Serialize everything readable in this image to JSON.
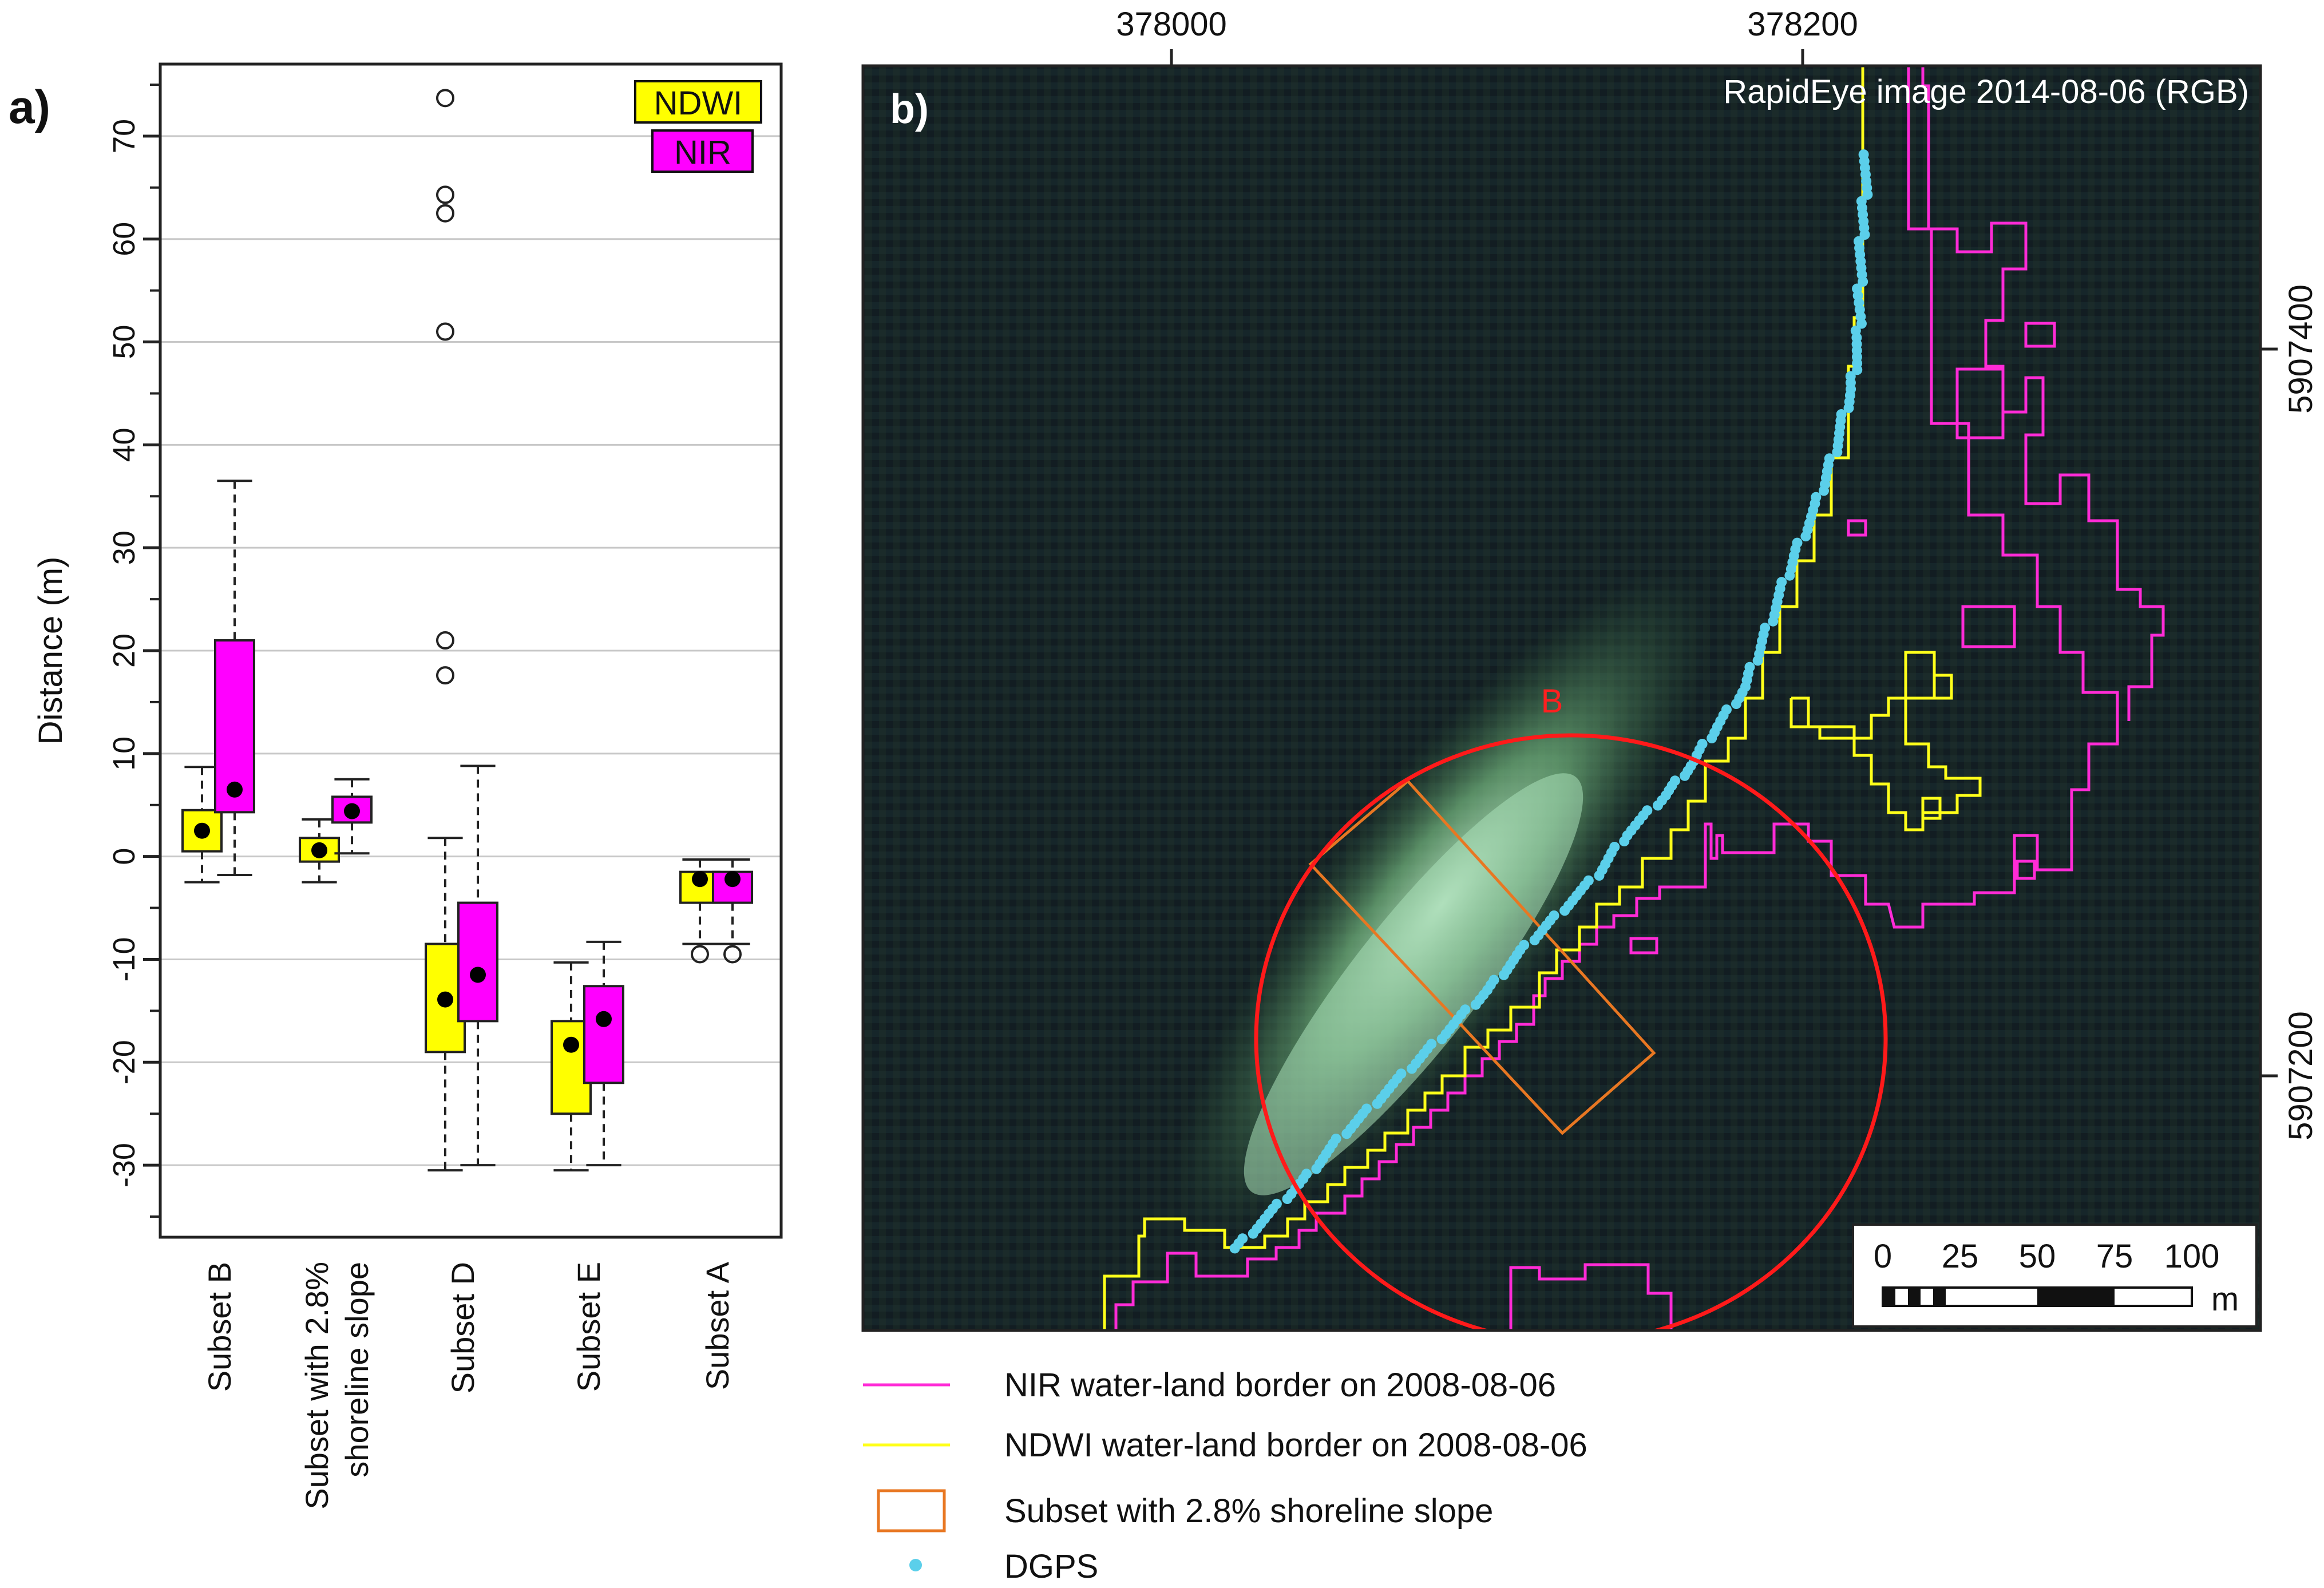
{
  "panel_a": {
    "label": "a)",
    "chart_data": {
      "type": "box",
      "ylabel": "Distance (m)",
      "ylim": [
        -37,
        77
      ],
      "yticks": [
        -30,
        -20,
        -10,
        0,
        10,
        20,
        30,
        40,
        50,
        60,
        70
      ],
      "ytick_labels": [
        "-30",
        "-20",
        "-10",
        "0",
        "10",
        "20",
        "30",
        "40",
        "50",
        "60",
        "70"
      ],
      "grid": true,
      "legend_position": "top-right",
      "categories": [
        [
          "Subset B"
        ],
        [
          "Subset with 2.8%",
          "shoreline slope"
        ],
        [
          "Subset D"
        ],
        [
          "Subset E"
        ],
        [
          "Subset A"
        ]
      ],
      "series": [
        {
          "name": "NDWI",
          "color": "#ffff00",
          "boxes": [
            {
              "whisker_low": -2.5,
              "q1": 0.5,
              "median": 2.5,
              "q3": 4.5,
              "whisker_high": 8.7,
              "mean": 2.5,
              "outliers": []
            },
            {
              "whisker_low": -2.5,
              "q1": -0.5,
              "median": 0.5,
              "q3": 1.8,
              "whisker_high": 3.6,
              "mean": 0.6,
              "outliers": []
            },
            {
              "whisker_low": -30.5,
              "q1": -19,
              "median": -14,
              "q3": -8.5,
              "whisker_high": 1.8,
              "mean": -13.9,
              "outliers": [
                17.6,
                21,
                51,
                62.5,
                64.3,
                73.7
              ]
            },
            {
              "whisker_low": -30.5,
              "q1": -25,
              "median": -18.3,
              "q3": -16,
              "whisker_high": -10.3,
              "mean": -18.3,
              "outliers": []
            },
            {
              "whisker_low": -8.5,
              "q1": -4.5,
              "median": -2,
              "q3": -1.5,
              "whisker_high": -0.3,
              "mean": -2.2,
              "outliers": [
                -9.5
              ]
            }
          ]
        },
        {
          "name": "NIR",
          "color": "#ff00ff",
          "boxes": [
            {
              "whisker_low": -1.8,
              "q1": 4.3,
              "median": 6.5,
              "q3": 21,
              "whisker_high": 36.5,
              "mean": 6.5,
              "outliers": []
            },
            {
              "whisker_low": 0.3,
              "q1": 3.3,
              "median": 4.5,
              "q3": 5.8,
              "whisker_high": 7.5,
              "mean": 4.4,
              "outliers": []
            },
            {
              "whisker_low": -30,
              "q1": -16,
              "median": -11.5,
              "q3": -4.5,
              "whisker_high": 8.8,
              "mean": -11.5,
              "outliers": []
            },
            {
              "whisker_low": -30,
              "q1": -22,
              "median": -15.8,
              "q3": -12.6,
              "whisker_high": -8.3,
              "mean": -15.8,
              "outliers": []
            },
            {
              "whisker_low": -8.5,
              "q1": -4.5,
              "median": -2,
              "q3": -1.5,
              "whisker_high": -0.3,
              "mean": -2.2,
              "outliers": [
                -9.5
              ]
            }
          ]
        }
      ]
    }
  },
  "panel_b": {
    "label": "b)",
    "image_title": "RapidEye image 2014-08-06 (RGB)",
    "x_ticks": [
      "378000",
      "378200"
    ],
    "y_ticks": [
      "5907400",
      "5907200"
    ],
    "region_label": "B",
    "scalebar": {
      "labels": [
        "0",
        "25",
        "50",
        "75",
        "100"
      ],
      "unit": "m"
    },
    "colors": {
      "nir_line": "#ff2bd6",
      "ndwi_line": "#ffff1a",
      "dgps": "#5bcfea",
      "circle": "#ff1a1a",
      "subset_rect": "#e87722",
      "background": "#14201f"
    },
    "legend": [
      {
        "key": "nir",
        "label": "NIR water-land border on 2008-08-06"
      },
      {
        "key": "ndwi",
        "label": "NDWI water-land border on 2008-08-06"
      },
      {
        "key": "subset",
        "label": "Subset with 2.8% shoreline slope"
      },
      {
        "key": "dgps",
        "label": "DGPS"
      }
    ]
  }
}
